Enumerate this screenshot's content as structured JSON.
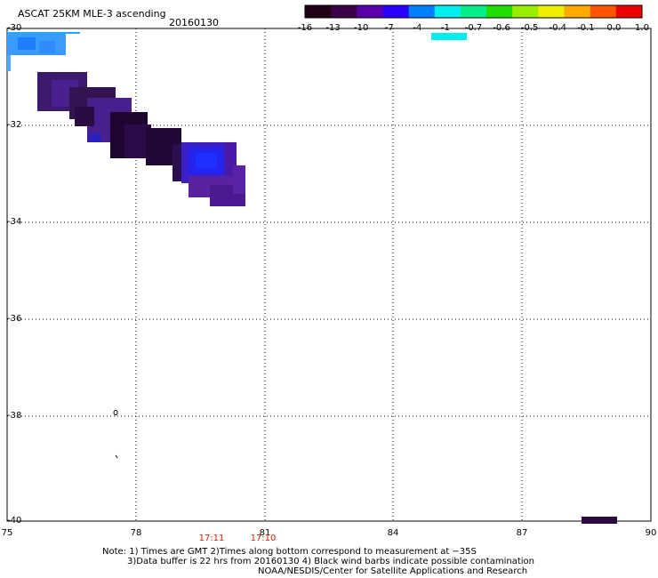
{
  "title": "ASCAT 25KM MLE-3 ascending",
  "date": "20160130",
  "colorbar": {
    "labels": [
      "-16",
      "-13",
      "-10",
      "-7",
      "-4",
      "-1",
      "-0.7",
      "-0.6",
      "-0.5",
      "-0.4",
      "-0.1",
      "0.0",
      "1.0"
    ],
    "colors": [
      "#200018",
      "#3c0046",
      "#5a00aa",
      "#2a00ff",
      "#0080ff",
      "#00eeee",
      "#00ee88",
      "#22dd00",
      "#99ee00",
      "#eeee00",
      "#ffaa00",
      "#ff5500",
      "#ee0000"
    ]
  },
  "axes": {
    "lat_labels": [
      "-30",
      "-32",
      "-34",
      "-36",
      "-38",
      "-40"
    ],
    "lon_labels": [
      "75",
      "78",
      "81",
      "84",
      "87",
      "90"
    ]
  },
  "times": [
    "17:11",
    "17:10"
  ],
  "notes": [
    "Note: 1) Times are GMT 2)Times along bottom correspond to measurement at −35S",
    "3)Data buffer is 22 hrs from 20160130 4) Black wind barbs indicate possible contamination",
    "NOAA/NESDIS/Center for Satellite Applications and Research"
  ]
}
